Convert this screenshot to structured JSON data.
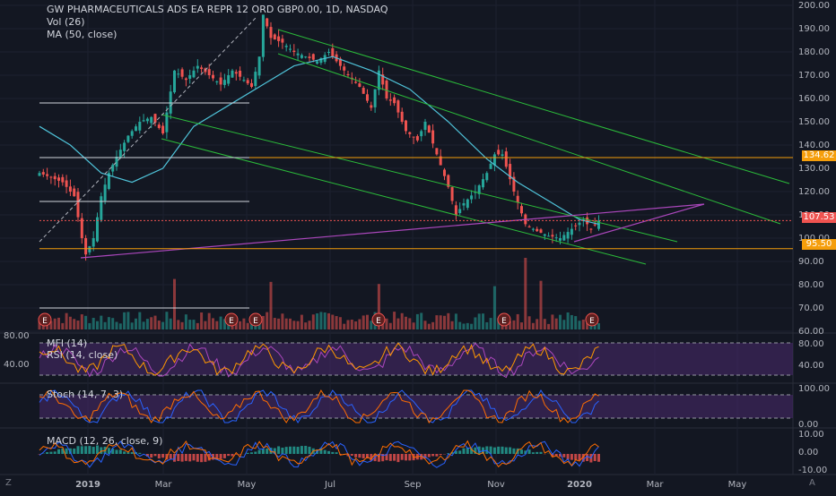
{
  "header": {
    "title": "GW PHARMACEUTICALS ADS EA REPR 12 ORD GBP0.00, 1D, NASDAQ",
    "vol_label": "Vol (26)",
    "ma_label": "MA (50, close)"
  },
  "price_axis": {
    "ticks": [
      "200.00",
      "190.00",
      "180.00",
      "170.00",
      "160.00",
      "150.00",
      "140.00",
      "130.00",
      "120.00",
      "110.00",
      "100.00",
      "90.00",
      "80.00",
      "70.00",
      "60.00"
    ],
    "badges": [
      {
        "value": "134.62",
        "color": "#f59e0b"
      },
      {
        "value": "107.53",
        "color": "#ef5350"
      },
      {
        "value": "95.50",
        "color": "#f59e0b"
      }
    ]
  },
  "time_axis": {
    "labels": [
      "2019",
      "Mar",
      "May",
      "Jul",
      "Sep",
      "Nov",
      "2020",
      "Mar",
      "May"
    ]
  },
  "earnings_markers": [
    "E",
    "E",
    "E",
    "E",
    "E",
    "E"
  ],
  "panels": {
    "mfi_rsi": {
      "mfi_label": "MFI (14)",
      "rsi_label": "RSI (14, close)",
      "left_ticks": [
        "80.00",
        "40.00"
      ],
      "right_ticks": [
        "80.00",
        "40.00"
      ]
    },
    "stoch": {
      "label": "Stoch (14, 7, 3)",
      "right_ticks": [
        "100.00",
        "0.00"
      ]
    },
    "macd": {
      "label": "MACD (12, 26, close, 9)",
      "right_ticks": [
        "10.00",
        "0.00",
        "-10.00"
      ]
    }
  },
  "corner_labels": {
    "bottom_left": "Z",
    "bottom_right": "A"
  },
  "chart_data": {
    "type": "line",
    "title": "GW PHARMACEUTICALS ADS EA REPR 12 ORD GBP0.00, 1D, NASDAQ",
    "y_range": [
      60,
      200
    ],
    "series": [
      {
        "name": "close",
        "color": "#26a69a",
        "points": [
          [
            0,
            128
          ],
          [
            3,
            126
          ],
          [
            6,
            124
          ],
          [
            9,
            118
          ],
          [
            11,
            100
          ],
          [
            12,
            93
          ],
          [
            14,
            100
          ],
          [
            16,
            118
          ],
          [
            18,
            128
          ],
          [
            20,
            135
          ],
          [
            23,
            144
          ],
          [
            26,
            150
          ],
          [
            29,
            152
          ],
          [
            32,
            145
          ],
          [
            35,
            172
          ],
          [
            38,
            168
          ],
          [
            41,
            174
          ],
          [
            44,
            170
          ],
          [
            47,
            166
          ],
          [
            50,
            172
          ],
          [
            53,
            168
          ],
          [
            55,
            165
          ],
          [
            57,
            178
          ],
          [
            58,
            196
          ],
          [
            60,
            186
          ],
          [
            63,
            184
          ],
          [
            66,
            180
          ],
          [
            69,
            178
          ],
          [
            72,
            176
          ],
          [
            75,
            180
          ],
          [
            78,
            174
          ],
          [
            80,
            170
          ],
          [
            83,
            165
          ],
          [
            86,
            156
          ],
          [
            88,
            172
          ],
          [
            90,
            160
          ],
          [
            92,
            158
          ],
          [
            95,
            146
          ],
          [
            98,
            142
          ],
          [
            100,
            150
          ],
          [
            103,
            136
          ],
          [
            106,
            122
          ],
          [
            108,
            110
          ],
          [
            110,
            115
          ],
          [
            113,
            120
          ],
          [
            116,
            128
          ],
          [
            118,
            136
          ],
          [
            120,
            136
          ],
          [
            123,
            120
          ],
          [
            126,
            106
          ],
          [
            129,
            103
          ],
          [
            132,
            101
          ],
          [
            135,
            100
          ],
          [
            138,
            104
          ],
          [
            141,
            108
          ],
          [
            143,
            104
          ],
          [
            145,
            107.5
          ]
        ]
      },
      {
        "name": "MA (50, close)",
        "color": "#4fc3d9",
        "points": [
          [
            0,
            148
          ],
          [
            8,
            140
          ],
          [
            16,
            128
          ],
          [
            24,
            124
          ],
          [
            32,
            130
          ],
          [
            40,
            148
          ],
          [
            50,
            158
          ],
          [
            58,
            166
          ],
          [
            66,
            174
          ],
          [
            76,
            178
          ],
          [
            86,
            172
          ],
          [
            96,
            164
          ],
          [
            106,
            150
          ],
          [
            116,
            134
          ],
          [
            124,
            124
          ],
          [
            132,
            116
          ],
          [
            140,
            108
          ],
          [
            145,
            106
          ]
        ]
      }
    ],
    "annotations": {
      "horizontal_levels": [
        134.62,
        95.5
      ],
      "last_price": 107.53
    }
  }
}
